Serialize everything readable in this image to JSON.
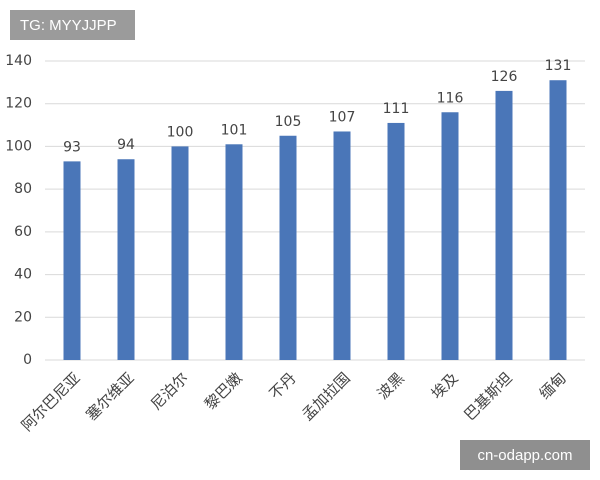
{
  "chart_data": {
    "type": "bar",
    "categories": [
      "阿尔巴尼亚",
      "塞尔维亚",
      "尼泊尔",
      "黎巴嫩",
      "不丹",
      "孟加拉国",
      "波黑",
      "埃及",
      "巴基斯坦",
      "缅甸"
    ],
    "values": [
      93,
      94,
      100,
      101,
      105,
      107,
      111,
      116,
      126,
      131
    ],
    "color": "#4a76b8",
    "ylim": [
      0,
      140
    ],
    "yticks": [
      0,
      20,
      40,
      60,
      80,
      100,
      120,
      140
    ],
    "grid": true
  },
  "watermarks": {
    "top_left": "TG: MYYJJPP",
    "bottom_right": "cn-odapp.com"
  }
}
